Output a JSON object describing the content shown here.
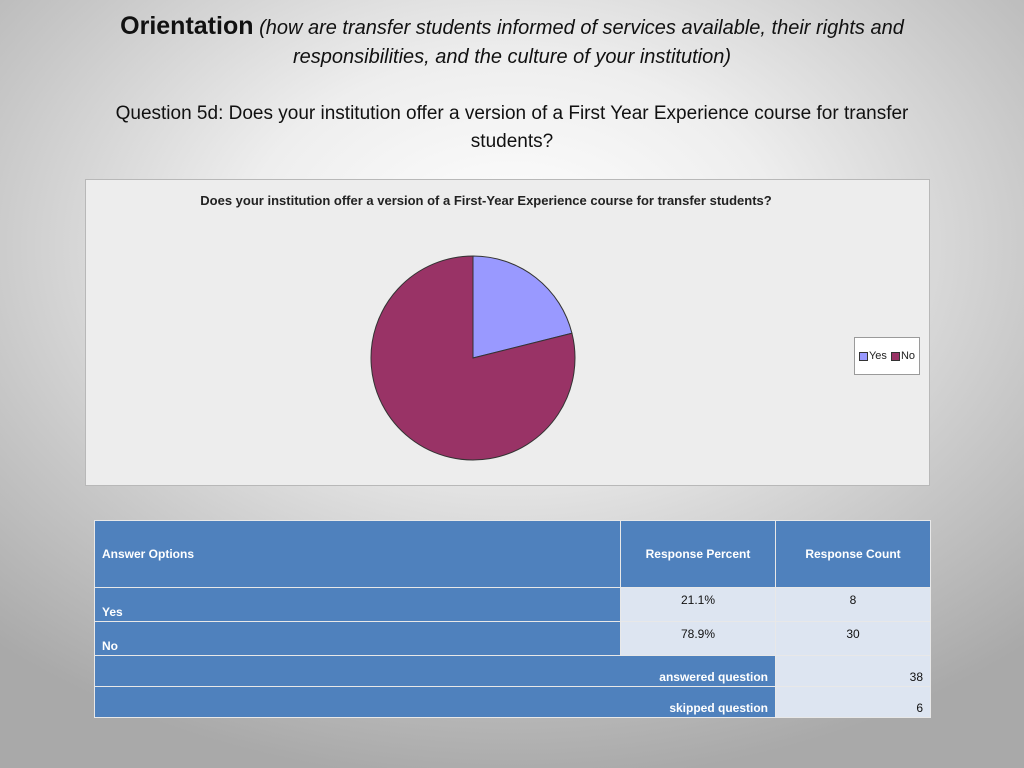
{
  "header": {
    "title": "Orientation",
    "subtitle_line1": "(how are transfer students informed of services available, their rights and",
    "subtitle_line2": "responsibilities, and the culture of your institution)",
    "question_line1": "Question 5d: Does your institution offer a version of a First Year Experience course for transfer",
    "question_line2": "students?"
  },
  "chart_data": {
    "type": "pie",
    "title": "Does your institution offer a version of a First-Year Experience course for transfer students?",
    "categories": [
      "Yes",
      "No"
    ],
    "values": [
      21.1,
      78.9
    ],
    "colors": [
      "#9999ff",
      "#993366"
    ],
    "legend_position": "right"
  },
  "table": {
    "headers": [
      "Answer Options",
      "Response Percent",
      "Response Count"
    ],
    "rows": [
      {
        "option": "Yes",
        "percent": "21.1%",
        "count": "8"
      },
      {
        "option": "No",
        "percent": "78.9%",
        "count": "30"
      }
    ],
    "answered_label": "answered question",
    "answered_count": "38",
    "skipped_label": "skipped question",
    "skipped_count": "6"
  }
}
